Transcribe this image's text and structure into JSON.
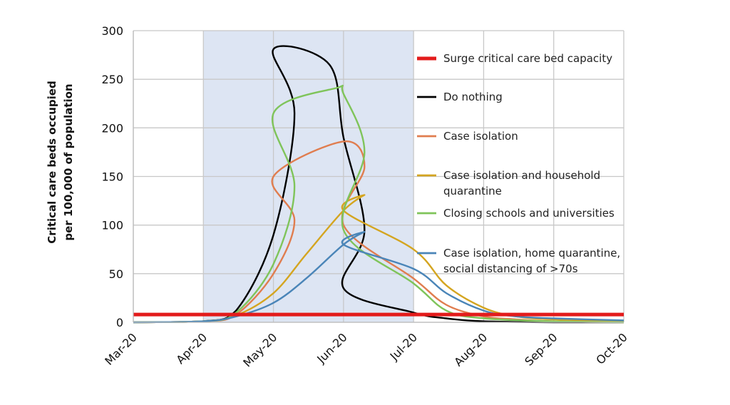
{
  "chart_data": {
    "type": "line",
    "title": "",
    "xlabel": "",
    "ylabel_lines": [
      "Critical care beds occupied",
      "per 100,000 of population"
    ],
    "x_ticks": [
      "Mar-20",
      "Apr-20",
      "May-20",
      "Jun-20",
      "Jul-20",
      "Aug-20",
      "Sep-20",
      "Oct-20"
    ],
    "y_ticks": [
      0,
      50,
      100,
      150,
      200,
      250,
      300
    ],
    "ylim": [
      0,
      300
    ],
    "grid": true,
    "shaded_period": {
      "from": "Apr-20",
      "to": "Jul-20",
      "color": "#dde5f3"
    },
    "legend_placement": "right",
    "series": [
      {
        "name": "Surge critical care bed capacity",
        "color": "#e31b1b",
        "style": "thick",
        "x": [
          "Mar-20",
          "Oct-20"
        ],
        "values": [
          8,
          8
        ]
      },
      {
        "name": "Do nothing",
        "color": "#000000",
        "x": [
          "Mar-20",
          "Apr-20",
          "Apr-15",
          "May-01",
          "May-10",
          "May-20",
          "May-25",
          "Jun-01",
          "Jun-10",
          "Jun-20",
          "Jul-01",
          "Jul-15",
          "Aug-01",
          "Sep-01",
          "Oct-01"
        ],
        "values": [
          0,
          1,
          12,
          90,
          215,
          281,
          265,
          190,
          95,
          35,
          10,
          4,
          1,
          0,
          0
        ]
      },
      {
        "name": "Case isolation",
        "color": "#e07d4f",
        "x": [
          "Mar-20",
          "Apr-20",
          "Apr-15",
          "May-01",
          "May-10",
          "May-20",
          "Jun-01",
          "Jun-10",
          "Jun-20",
          "Jul-01",
          "Jul-15",
          "Aug-01",
          "Aug-15",
          "Sep-01",
          "Oct-01"
        ],
        "values": [
          0,
          1,
          8,
          50,
          105,
          150,
          186,
          160,
          100,
          45,
          18,
          6,
          3,
          1,
          0
        ]
      },
      {
        "name": "Case isolation and household quarantine",
        "color": "#d4a520",
        "x": [
          "Mar-20",
          "Apr-20",
          "Apr-15",
          "May-01",
          "May-15",
          "Jun-01",
          "Jun-10",
          "Jun-20",
          "Jul-01",
          "Jul-15",
          "Aug-01",
          "Aug-15",
          "Sep-01",
          "Oct-01"
        ],
        "values": [
          0,
          1,
          7,
          30,
          70,
          115,
          131,
          115,
          75,
          38,
          15,
          6,
          3,
          1
        ]
      },
      {
        "name": "Closing schools and universities",
        "color": "#7fc45a",
        "x": [
          "Mar-20",
          "Apr-20",
          "Apr-15",
          "May-01",
          "May-10",
          "May-20",
          "May-28",
          "Jun-01",
          "Jun-10",
          "Jun-20",
          "Jul-01",
          "Jul-15",
          "Aug-01",
          "Sep-01",
          "Oct-01"
        ],
        "values": [
          0,
          1,
          10,
          60,
          140,
          215,
          241,
          235,
          175,
          95,
          40,
          12,
          4,
          1,
          0
        ]
      },
      {
        "name": "Case isolation, home quarantine, social distancing of >70s",
        "color": "#4a85b8",
        "x": [
          "Mar-20",
          "Apr-20",
          "Apr-15",
          "May-01",
          "May-15",
          "Jun-01",
          "Jun-10",
          "Jun-20",
          "Jul-01",
          "Jul-15",
          "Aug-01",
          "Aug-15",
          "Sep-01",
          "Oct-01"
        ],
        "values": [
          0,
          1,
          6,
          20,
          45,
          80,
          93,
          80,
          55,
          30,
          12,
          6,
          4,
          2
        ]
      }
    ],
    "legend": [
      {
        "lines": [
          "Surge critical care bed capacity"
        ]
      },
      {
        "lines": [
          "Do nothing"
        ]
      },
      {
        "lines": [
          "Case isolation"
        ]
      },
      {
        "lines": [
          "Case isolation and household",
          "quarantine"
        ]
      },
      {
        "lines": [
          "Closing schools and universities"
        ]
      },
      {
        "lines": [
          "Case isolation, home quarantine,",
          "social distancing of >70s"
        ]
      }
    ]
  }
}
